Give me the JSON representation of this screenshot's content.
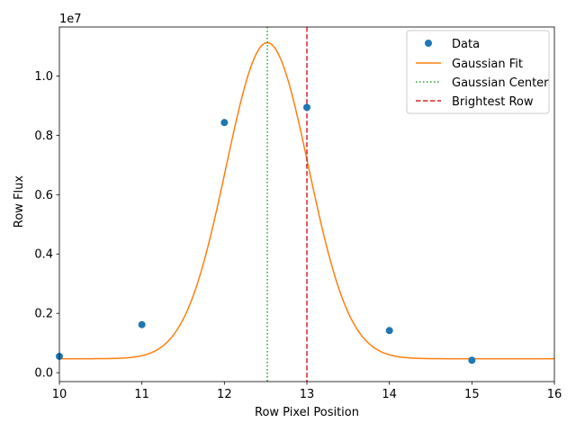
{
  "chart_data": {
    "type": "scatter",
    "title": "",
    "xlabel": "Row Pixel Position",
    "ylabel": "Row Flux",
    "y_offset_label": "1e7",
    "xlim": [
      10,
      16
    ],
    "ylim": [
      -0.03,
      1.165
    ],
    "y_scale_factor": 10000000,
    "x_ticks": [
      10,
      11,
      12,
      13,
      14,
      15,
      16
    ],
    "y_ticks": [
      0.0,
      0.2,
      0.4,
      0.6,
      0.8,
      1.0
    ],
    "y_tick_labels": [
      "0.0",
      "0.2",
      "0.4",
      "0.6",
      "0.8",
      "1.0"
    ],
    "grid": false,
    "legend_position": "top-right",
    "series": [
      {
        "name": "Data",
        "kind": "points",
        "color": "#1f77b4",
        "x": [
          10,
          11,
          12,
          13,
          14,
          15
        ],
        "y": [
          0.055,
          0.162,
          0.843,
          0.894,
          0.142,
          0.042
        ]
      },
      {
        "name": "Gaussian Fit",
        "kind": "curve",
        "color": "#ff7f0e",
        "model": "gaussian",
        "amplitude": 1.065,
        "center": 12.52,
        "sigma": 0.5,
        "baseline": 0.047
      },
      {
        "name": "Gaussian Center",
        "kind": "vline",
        "color": "#2ca02c",
        "style": "dotted",
        "x": 12.52
      },
      {
        "name": "Brightest Row",
        "kind": "vline",
        "color": "#d62728",
        "style": "dashed",
        "x": 13
      }
    ]
  }
}
